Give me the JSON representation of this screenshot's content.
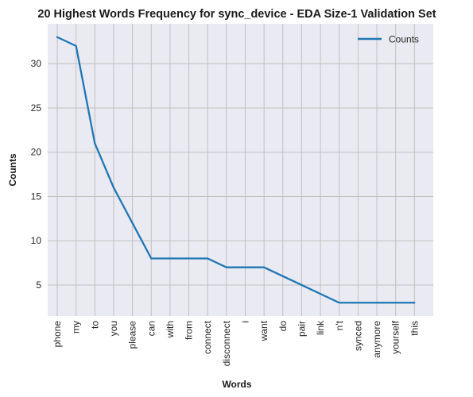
{
  "chart_data": {
    "type": "line",
    "title": "20 Highest Words Frequency for sync_device - EDA Size-1 Validation Set",
    "xlabel": "Words",
    "ylabel": "Counts",
    "categories": [
      "phone",
      "my",
      "to",
      "you",
      "please",
      "can",
      "with",
      "from",
      "connect",
      "disconnect",
      "i",
      "want",
      "do",
      "pair",
      "link",
      "n't",
      "synced",
      "anymore",
      "yourself",
      "this"
    ],
    "series": [
      {
        "name": "Counts",
        "values": [
          33,
          32,
          21,
          16,
          12,
          8,
          8,
          8,
          8,
          7,
          7,
          7,
          6,
          5,
          4,
          3,
          3,
          3,
          3,
          3
        ],
        "color": "#1f77b4"
      }
    ],
    "yticks": [
      5,
      10,
      15,
      20,
      25,
      30
    ],
    "ylim": [
      1.5,
      34.5
    ],
    "grid": true,
    "legend": "top-right",
    "background": "#eaeaf2",
    "grid_color": "#c0c0c0"
  }
}
